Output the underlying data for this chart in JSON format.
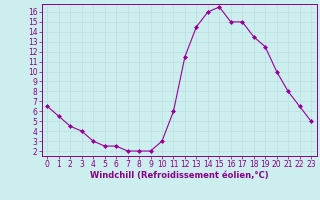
{
  "x": [
    0,
    1,
    2,
    3,
    4,
    5,
    6,
    7,
    8,
    9,
    10,
    11,
    12,
    13,
    14,
    15,
    16,
    17,
    18,
    19,
    20,
    21,
    22,
    23
  ],
  "y": [
    6.5,
    5.5,
    4.5,
    4.0,
    3.0,
    2.5,
    2.5,
    2.0,
    2.0,
    2.0,
    3.0,
    6.0,
    11.5,
    14.5,
    16.0,
    16.5,
    15.0,
    15.0,
    13.5,
    12.5,
    10.0,
    8.0,
    6.5,
    5.0
  ],
  "line_color": "#990099",
  "marker": "D",
  "marker_size": 2.0,
  "bg_color": "#cceeee",
  "grid_color": "#bbdddd",
  "xlabel": "Windchill (Refroidissement éolien,°C)",
  "xlim": [
    -0.5,
    23.5
  ],
  "ylim": [
    1.5,
    16.8
  ],
  "yticks": [
    2,
    3,
    4,
    5,
    6,
    7,
    8,
    9,
    10,
    11,
    12,
    13,
    14,
    15,
    16
  ],
  "xticks": [
    0,
    1,
    2,
    3,
    4,
    5,
    6,
    7,
    8,
    9,
    10,
    11,
    12,
    13,
    14,
    15,
    16,
    17,
    18,
    19,
    20,
    21,
    22,
    23
  ],
  "tick_color": "#880088",
  "label_color": "#880088",
  "font_size": 5.5,
  "xlabel_fontsize": 6.0,
  "linewidth": 0.8
}
